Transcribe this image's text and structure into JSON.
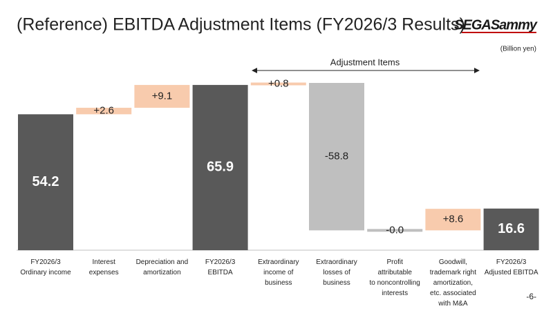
{
  "header": {
    "title": "(Reference) EBITDA Adjustment Items (FY2026/3 Results)",
    "logo": "SEGASammy",
    "page": "-6-"
  },
  "chart_data": {
    "type": "waterfall",
    "unit": "(Billion yen)",
    "annotation": "Adjustment Items",
    "categories": [
      "FY2026/3\nOrdinary income",
      "Interest\nexpenses",
      "Depreciation and\namortization",
      "FY2026/3\nEBITDA",
      "Extraordinary\nincome of\nbusiness",
      "Extraordinary\nlosses of\nbusiness",
      "Profit\nattributable\nto noncontrolling\ninterests",
      "Goodwill,\ntrademark right\namortization,\netc. associated\nwith M&A",
      "FY2026/3\nAdjusted EBITDA"
    ],
    "measure": [
      "total",
      "relative",
      "relative",
      "total",
      "relative",
      "relative",
      "relative",
      "relative",
      "total"
    ],
    "values": [
      54.2,
      2.6,
      9.1,
      65.9,
      0.8,
      -58.8,
      -0.0,
      8.6,
      16.6
    ],
    "value_labels": [
      "54.2",
      "+2.6",
      "+9.1",
      "65.9",
      "+0.8",
      "-58.8",
      "-0.0",
      "+8.6",
      "16.6"
    ],
    "colors": {
      "total": "#595959",
      "increase": "#f8cbad",
      "decrease": "#bfbfbf"
    }
  }
}
